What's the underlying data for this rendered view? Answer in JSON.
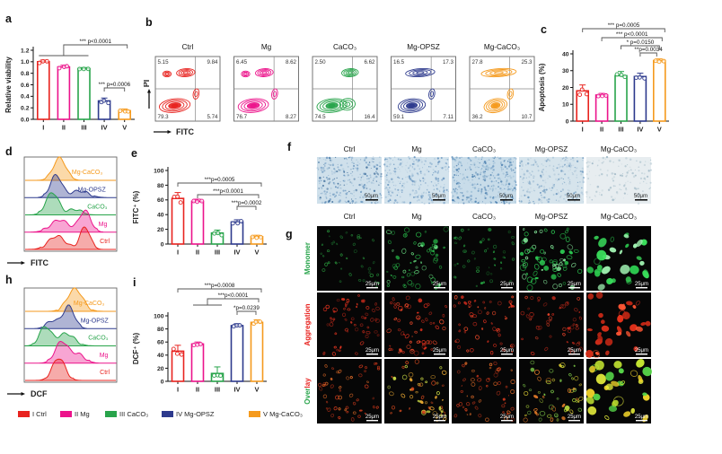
{
  "figure": {
    "colors": [
      "#e8231f",
      "#ec138b",
      "#28a44b",
      "#2d3a8d",
      "#f59a1d"
    ],
    "categories": [
      "I",
      "II",
      "III",
      "IV",
      "V"
    ]
  },
  "legend": {
    "items": [
      {
        "label": "I Ctrl",
        "color": "#e8231f"
      },
      {
        "label": "II Mg",
        "color": "#ec138b"
      },
      {
        "label": "III CaCO₃",
        "color": "#28a44b"
      },
      {
        "label": "IV Mg-OPSZ",
        "color": "#2d3a8d"
      },
      {
        "label": "V Mg-CaCO₃",
        "color": "#f59a1d"
      }
    ]
  },
  "panel_a": {
    "letter": "a",
    "chart_data": {
      "type": "bar",
      "ylabel": "Relative viability",
      "categories": [
        "I",
        "II",
        "III",
        "IV",
        "V"
      ],
      "values": [
        1.0,
        0.91,
        0.88,
        0.32,
        0.15
      ],
      "errors": [
        0.03,
        0.03,
        0.02,
        0.05,
        0.03
      ],
      "ylim": [
        0,
        1.2
      ],
      "ytick_step": 0.2,
      "ytick_decimals": 1,
      "sig": [
        {
          "text": "*** p<0.0001",
          "x1": 1,
          "x2": 4,
          "y": 42,
          "ro": 3,
          "group": [
            0,
            2,
            54
          ]
        },
        {
          "text": "*** p=0.0006",
          "x1": 3,
          "x2": 4,
          "y": 90,
          "ro": 0
        }
      ]
    }
  },
  "panel_b": {
    "letter": "b",
    "xlabel": "FITC",
    "ylabel": "PI",
    "plots": [
      {
        "title": "Ctrl",
        "color": "#e8231f",
        "q": {
          "ul": "5.15",
          "ur": "9.84",
          "ll": "79.3",
          "lr": "5.74"
        }
      },
      {
        "title": "Mg",
        "color": "#ec138b",
        "q": {
          "ul": "6.45",
          "ur": "8.62",
          "ll": "76.7",
          "lr": "8.27"
        }
      },
      {
        "title": "CaCO₃",
        "color": "#28a44b",
        "q": {
          "ul": "2.50",
          "ur": "6.62",
          "ll": "74.5",
          "lr": "16.4"
        }
      },
      {
        "title": "Mg-OPSZ",
        "color": "#2d3a8d",
        "q": {
          "ul": "16.5",
          "ur": "17.3",
          "ll": "59.1",
          "lr": "7.11"
        }
      },
      {
        "title": "Mg-CaCO₃",
        "color": "#f59a1d",
        "q": {
          "ul": "27.8",
          "ur": "25.3",
          "ll": "36.2",
          "lr": "10.7"
        }
      }
    ]
  },
  "panel_c": {
    "letter": "c",
    "chart_data": {
      "type": "bar",
      "ylabel": "Apoptosis (%)",
      "categories": [
        "I",
        "II",
        "III",
        "IV",
        "V"
      ],
      "values": [
        18,
        15.5,
        27,
        26.5,
        36
      ],
      "errors": [
        3.5,
        1,
        2.5,
        2,
        1
      ],
      "ylim": [
        0,
        40
      ],
      "ytick_step": 10,
      "ytick_decimals": 0,
      "sig": [
        {
          "text": "*** p=0.0005",
          "x1": 0,
          "x2": 4,
          "y": 32,
          "ro": 6
        },
        {
          "text": "*** p<0.0001",
          "x1": 1,
          "x2": 4,
          "y": 42,
          "ro": 3
        },
        {
          "text": "* p=0.0150",
          "x1": 2,
          "x2": 4,
          "y": 51,
          "ro": 0
        },
        {
          "text": "**p=0.0034",
          "x1": 3,
          "x2": 4,
          "y": 59,
          "ro": -3
        }
      ]
    }
  },
  "panel_d": {
    "letter": "d",
    "xlabel": "FITC",
    "series": [
      {
        "name": "Mg-CaCO₃",
        "color": "#f59a1d",
        "lx": 0.68,
        "peaks": [
          {
            "c": 0.38,
            "w": 0.1,
            "h": 1.0
          }
        ]
      },
      {
        "name": "Mg-OPSZ",
        "color": "#2d3a8d",
        "lx": 0.73,
        "peaks": [
          {
            "c": 0.34,
            "w": 0.09,
            "h": 1.0
          },
          {
            "c": 0.6,
            "w": 0.14,
            "h": 0.3
          }
        ]
      },
      {
        "name": "CaCO₃",
        "color": "#28a44b",
        "lx": 0.79,
        "peaks": [
          {
            "c": 0.3,
            "w": 0.1,
            "h": 1.0
          },
          {
            "c": 0.55,
            "w": 0.1,
            "h": 0.25
          }
        ]
      },
      {
        "name": "Mg",
        "color": "#ec138b",
        "lx": 0.85,
        "peaks": [
          {
            "c": 0.38,
            "w": 0.14,
            "h": 0.55
          },
          {
            "c": 0.66,
            "w": 0.09,
            "h": 0.95
          }
        ]
      },
      {
        "name": "Ctrl",
        "color": "#e8231f",
        "lx": 0.87,
        "peaks": [
          {
            "c": 0.35,
            "w": 0.13,
            "h": 0.6
          },
          {
            "c": 0.66,
            "w": 0.08,
            "h": 1.0
          }
        ]
      }
    ]
  },
  "panel_e": {
    "letter": "e",
    "chart_data": {
      "type": "bar",
      "ylabel": "FITC⁺ (%)",
      "categories": [
        "I",
        "II",
        "III",
        "IV",
        "V"
      ],
      "values": [
        62,
        58,
        15,
        30,
        10
      ],
      "errors": [
        8,
        3,
        4,
        3,
        2
      ],
      "ylim": [
        0,
        100
      ],
      "ytick_step": 20,
      "ytick_decimals": 0,
      "sig": [
        {
          "text": "***p=0.0005",
          "x1": 0,
          "x2": 4,
          "y": 46,
          "ro": 5
        },
        {
          "text": "***p<0.0001",
          "x1": 1,
          "x2": 4,
          "y": 59,
          "ro": 2
        },
        {
          "text": "***p=0.0002",
          "x1": 3,
          "x2": 4,
          "y": 72,
          "ro": -1
        }
      ]
    }
  },
  "panel_f": {
    "letter": "f",
    "columns": [
      "Ctrl",
      "Mg",
      "CaCO₃",
      "Mg-OPSZ",
      "Mg-CaCO₃"
    ],
    "scale_bar": "50μm",
    "cells": [
      {
        "bg": "#cfe0eb",
        "density": 1.0,
        "speckles": [
          "#5d8cb8",
          "#7fa6c9",
          "#a9c5da",
          "#47749f"
        ]
      },
      {
        "bg": "#d3e3ed",
        "density": 0.95,
        "speckles": [
          "#6b97c0",
          "#8fb2d0",
          "#b3cbdd"
        ]
      },
      {
        "bg": "#c8dce9",
        "density": 1.15,
        "speckles": [
          "#4f82b0",
          "#76a1c6",
          "#9fbfd6"
        ]
      },
      {
        "bg": "#d6e4ec",
        "density": 0.85,
        "speckles": [
          "#6f9ac0",
          "#93b4ce",
          "#b9cedd"
        ]
      },
      {
        "bg": "#e7edf0",
        "density": 0.45,
        "speckles": [
          "#b4c8d2",
          "#c7d6dd",
          "#a3bbc8"
        ]
      }
    ]
  },
  "panel_g": {
    "letter": "g",
    "columns": [
      "Ctrl",
      "Mg",
      "CaCO₃",
      "Mg-OPSZ",
      "Mg-CaCO₃"
    ],
    "scale_bar": "25μm",
    "rows": [
      {
        "label": "Monomer",
        "color": "#28a44b"
      },
      {
        "label": "Aggregation",
        "color": "#e8231f"
      },
      {
        "label": "Overlay",
        "parts": [
          {
            "text": "Over",
            "color": "#28a44b"
          },
          {
            "text": "lay",
            "color": "#e8231f"
          }
        ]
      }
    ],
    "cell_params": [
      [
        {
          "n": 40,
          "rmin": 0.6,
          "rmax": 1.8,
          "solid": 0.12,
          "colors": [
            "#1c6f2e",
            "#2a9c3e",
            "#175a26"
          ]
        },
        {
          "n": 60,
          "rmin": 0.8,
          "rmax": 2.8,
          "solid": 0.22,
          "colors": [
            "#2ab94a",
            "#1f8f38",
            "#66d87e"
          ]
        },
        {
          "n": 45,
          "rmin": 0.6,
          "rmax": 2.0,
          "solid": 0.12,
          "colors": [
            "#1d7a31",
            "#26a040",
            "#14531f"
          ]
        },
        {
          "n": 70,
          "rmin": 1.0,
          "rmax": 3.4,
          "solid": 0.28,
          "colors": [
            "#2ed155",
            "#23aa43",
            "#8aeea0"
          ]
        },
        {
          "n": 30,
          "rmin": 2.4,
          "rmax": 5.6,
          "solid": 0.85,
          "colors": [
            "#3ae05c",
            "#2bc64d",
            "#9ff0b0"
          ]
        }
      ],
      [
        {
          "n": 55,
          "rmin": 0.8,
          "rmax": 2.2,
          "solid": 0.15,
          "colors": [
            "#b5271a",
            "#e0341f",
            "#8f1f14"
          ]
        },
        {
          "n": 60,
          "rmin": 0.8,
          "rmax": 2.5,
          "solid": 0.2,
          "colors": [
            "#d92f1d",
            "#f04a2a",
            "#a32417"
          ]
        },
        {
          "n": 55,
          "rmin": 0.8,
          "rmax": 2.3,
          "solid": 0.15,
          "colors": [
            "#d92f1d",
            "#b5271a",
            "#f04a2a"
          ]
        },
        {
          "n": 50,
          "rmin": 0.8,
          "rmax": 2.3,
          "solid": 0.15,
          "colors": [
            "#cf2c1c",
            "#e8442a",
            "#9c2216"
          ]
        },
        {
          "n": 30,
          "rmin": 2.0,
          "rmax": 4.8,
          "solid": 0.8,
          "colors": [
            "#e8321c",
            "#ff5533",
            "#c22715"
          ]
        }
      ],
      [
        {
          "n": 50,
          "rmin": 0.8,
          "rmax": 2.1,
          "solid": 0.15,
          "colors": [
            "#cf3a1c",
            "#e06b28",
            "#a32c15"
          ]
        },
        {
          "n": 55,
          "rmin": 0.9,
          "rmax": 2.5,
          "solid": 0.25,
          "colors": [
            "#d2491e",
            "#e8a832",
            "#c9d945"
          ]
        },
        {
          "n": 55,
          "rmin": 0.8,
          "rmax": 2.3,
          "solid": 0.15,
          "colors": [
            "#cf3a1c",
            "#e06b28",
            "#b03018"
          ]
        },
        {
          "n": 60,
          "rmin": 1.0,
          "rmax": 2.9,
          "solid": 0.25,
          "colors": [
            "#d8c832",
            "#a8cc3a",
            "#e07a28",
            "#7cc648"
          ]
        },
        {
          "n": 30,
          "rmin": 2.4,
          "rmax": 5.6,
          "solid": 0.85,
          "colors": [
            "#e8f03c",
            "#c6e832",
            "#f0d22a",
            "#58d84a"
          ]
        }
      ]
    ]
  },
  "panel_h": {
    "letter": "h",
    "xlabel": "DCF",
    "series": [
      {
        "name": "Mg-CaCO₃",
        "color": "#f59a1d",
        "lx": 0.7,
        "peaks": [
          {
            "c": 0.55,
            "w": 0.12,
            "h": 1.0
          }
        ]
      },
      {
        "name": "Mg-OPSZ",
        "color": "#2d3a8d",
        "lx": 0.76,
        "peaks": [
          {
            "c": 0.48,
            "w": 0.09,
            "h": 1.0
          },
          {
            "c": 0.3,
            "w": 0.09,
            "h": 0.35
          }
        ]
      },
      {
        "name": "CaCO₃",
        "color": "#28a44b",
        "lx": 0.8,
        "peaks": [
          {
            "c": 0.22,
            "w": 0.09,
            "h": 0.85
          },
          {
            "c": 0.45,
            "w": 0.13,
            "h": 0.55
          }
        ]
      },
      {
        "name": "Mg",
        "color": "#ec138b",
        "lx": 0.86,
        "peaks": [
          {
            "c": 0.4,
            "w": 0.1,
            "h": 0.95
          },
          {
            "c": 0.58,
            "w": 0.11,
            "h": 0.4
          }
        ]
      },
      {
        "name": "Ctrl",
        "color": "#e8231f",
        "lx": 0.87,
        "peaks": [
          {
            "c": 0.37,
            "w": 0.1,
            "h": 1.0
          }
        ]
      }
    ]
  },
  "panel_i": {
    "letter": "i",
    "chart_data": {
      "type": "bar",
      "ylabel": "DCF⁺ (%)",
      "categories": [
        "I",
        "II",
        "III",
        "IV",
        "V"
      ],
      "values": [
        46,
        57,
        12,
        85,
        90
      ],
      "errors": [
        9,
        3,
        10,
        3,
        4
      ],
      "ylim": [
        0,
        100
      ],
      "ytick_step": 20,
      "ytick_decimals": 0,
      "sig": [
        {
          "text": "***p=0.0008",
          "x1": 0,
          "x2": 4,
          "y": 20,
          "ro": 5
        },
        {
          "text": "***p<0.0001",
          "x1": 1,
          "x2": 4,
          "y": 31,
          "ro": 2,
          "group": [
            1,
            2,
            38
          ]
        },
        {
          "text": "*p=0.0239",
          "x1": 3,
          "x2": 4,
          "y": 45,
          "ro": -1
        }
      ]
    }
  }
}
